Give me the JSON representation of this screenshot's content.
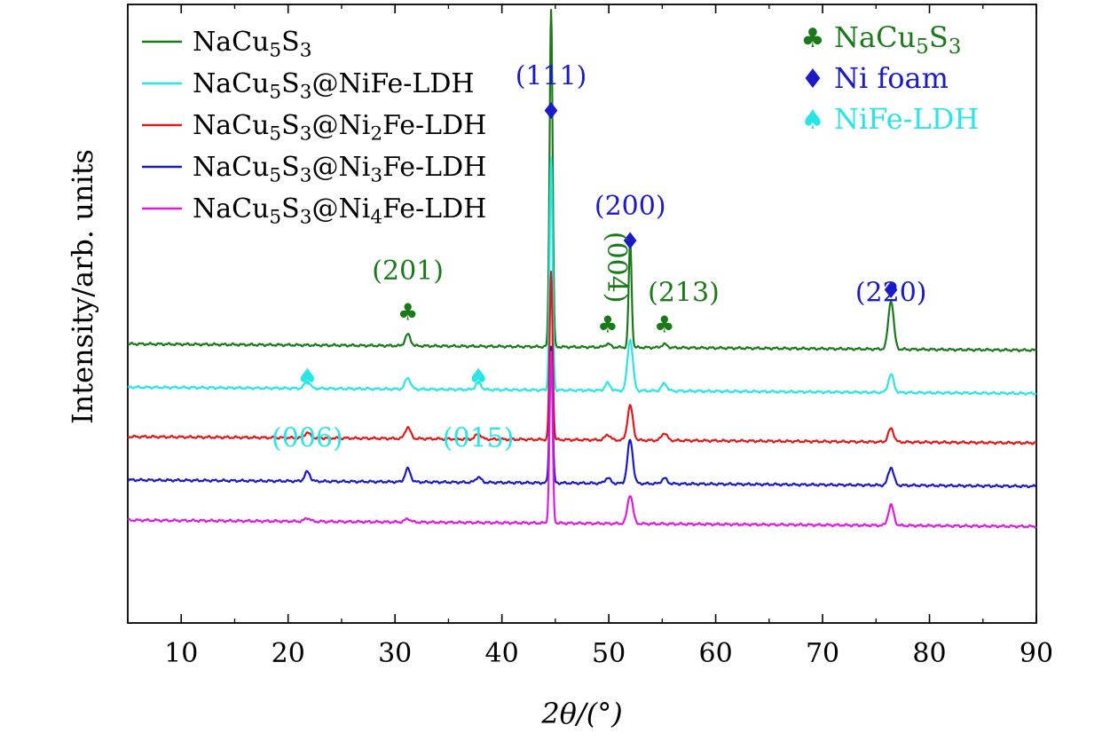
{
  "chart_data": {
    "type": "line",
    "title": "",
    "xlabel": "2θ/(°)",
    "ylabel": "Intensity/arb. units",
    "xlim": [
      5,
      90
    ],
    "x_ticks": [
      10,
      20,
      30,
      40,
      50,
      60,
      70,
      80,
      90
    ],
    "y_ticks_shown": false,
    "grid": false,
    "legend_position": "top-left",
    "series": [
      {
        "name": "NaCu5S3",
        "label": {
          "base": "NaCu",
          "sub1": "5",
          "mid": "S",
          "sub2": "3",
          "tail": "",
          "sub3": "",
          "end": ""
        },
        "color": "#1a7a1a",
        "baseline": 0.445,
        "peaks": [
          [
            31.2,
            0.0185
          ],
          [
            44.6,
            0.5456
          ],
          [
            49.9,
            0.0055
          ],
          [
            52.0,
            0.1696
          ],
          [
            55.2,
            0.0055
          ],
          [
            76.4,
            0.0787
          ]
        ]
      },
      {
        "name": "NaCu5S3@NiFe-LDH",
        "label": {
          "base": "NaCu",
          "sub1": "5",
          "mid": "S",
          "sub2": "3",
          "tail": "@NiFe-LDH",
          "sub3": "",
          "end": ""
        },
        "color": "#29e6e6",
        "baseline": 0.375,
        "peaks": [
          [
            21.8,
            0.012
          ],
          [
            31.2,
            0.0185
          ],
          [
            37.8,
            0.012
          ],
          [
            44.6,
            0.3741
          ],
          [
            49.9,
            0.012
          ],
          [
            52.0,
            0.0829
          ],
          [
            55.2,
            0.012
          ],
          [
            76.4,
            0.0291
          ]
        ]
      },
      {
        "name": "NaCu5S3@Ni2Fe-LDH",
        "label": {
          "base": "NaCu",
          "sub1": "5",
          "mid": "S",
          "sub2": "3",
          "tail": "@Ni",
          "sub3": "2",
          "end": "Fe-LDH"
        },
        "color": "#e01a1a",
        "baseline": 0.295,
        "peaks": [
          [
            21.8,
            0.0087
          ],
          [
            31.2,
            0.0185
          ],
          [
            37.8,
            0.0087
          ],
          [
            44.6,
            0.2709
          ],
          [
            49.9,
            0.0087
          ],
          [
            52.0,
            0.0561
          ],
          [
            55.2,
            0.012
          ],
          [
            76.4,
            0.022
          ]
        ]
      },
      {
        "name": "NaCu5S3@Ni3Fe-LDH",
        "label": {
          "base": "NaCu",
          "sub1": "5",
          "mid": "S",
          "sub2": "3",
          "tail": "@Ni",
          "sub3": "3",
          "end": "Fe-LDH"
        },
        "color": "#1a1ac8",
        "baseline": 0.225,
        "peaks": [
          [
            21.8,
            0.0153
          ],
          [
            31.2,
            0.0214
          ],
          [
            37.8,
            0.0087
          ],
          [
            44.6,
            0.2214
          ],
          [
            49.9,
            0.0087
          ],
          [
            52.0,
            0.0703
          ],
          [
            55.2,
            0.0087
          ],
          [
            76.4,
            0.0291
          ]
        ]
      },
      {
        "name": "NaCu5S3@Ni4Fe-LDH",
        "label": {
          "base": "NaCu",
          "sub1": "5",
          "mid": "S",
          "sub2": "3",
          "tail": "@Ni",
          "sub3": "4",
          "end": "Fe-LDH"
        },
        "color": "#e01ae0",
        "baseline": 0.16,
        "peaks": [
          [
            21.8,
            0.0055
          ],
          [
            31.2,
            0.0055
          ],
          [
            44.6,
            0.2768
          ],
          [
            52.0,
            0.0464
          ],
          [
            76.4,
            0.0332
          ]
        ]
      }
    ],
    "phase_legend": [
      {
        "symbol": "♣",
        "label": {
          "base": "NaCu",
          "sub1": "5",
          "mid": "S",
          "sub2": "3",
          "tail": ""
        },
        "color": "#1a7a1a"
      },
      {
        "symbol": "♦",
        "label": {
          "base": "Ni foam",
          "sub1": "",
          "mid": "",
          "sub2": "",
          "tail": ""
        },
        "color": "#1a1ac8"
      },
      {
        "symbol": "♠",
        "label": {
          "base": "NiFe-LDH",
          "sub1": "",
          "mid": "",
          "sub2": "",
          "tail": ""
        },
        "color": "#29e6e6"
      }
    ],
    "annotations": [
      {
        "text": "(111)",
        "x": 44.6,
        "y": 0.87,
        "color": "#1a1ac8",
        "symbol": "♦",
        "sym_y": 0.815
      },
      {
        "text": "(200)",
        "x": 52.0,
        "y": 0.66,
        "color": "#1a1ac8",
        "symbol": "♦",
        "sym_y": 0.605
      },
      {
        "text": "(220)",
        "x": 76.4,
        "y": 0.52,
        "color": "#1a1ac8",
        "symbol": "♦",
        "sym_y": 0.525
      },
      {
        "text": "(201)",
        "x": 31.2,
        "y": 0.555,
        "color": "#1a7a1a",
        "symbol": "♣",
        "sym_y": 0.49
      },
      {
        "text": "(004)",
        "x": 49.9,
        "y": 0.575,
        "color": "#1a7a1a",
        "symbol": "♣",
        "sym_y": 0.47,
        "rotate": true
      },
      {
        "text": "(213)",
        "x": 57.0,
        "y": 0.52,
        "color": "#1a7a1a",
        "symbol": "♣",
        "sym_y": 0.47,
        "sym_x": 55.2
      },
      {
        "text": "(006)",
        "x": 21.8,
        "y": 0.285,
        "color": "#29e6e6",
        "symbol": "♠",
        "sym_y": 0.385
      },
      {
        "text": "(015)",
        "x": 37.8,
        "y": 0.285,
        "color": "#29e6e6",
        "symbol": "♠",
        "sym_y": 0.385
      }
    ]
  }
}
